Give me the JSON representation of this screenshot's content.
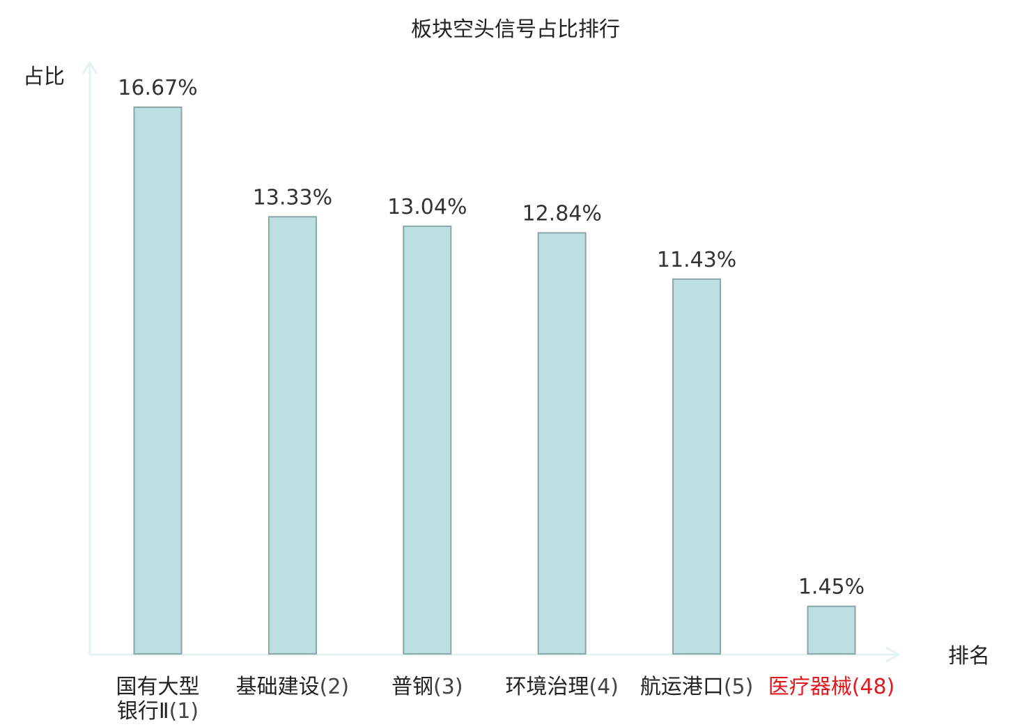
{
  "chart_data": {
    "type": "bar",
    "title": "板块空头信号占比排行",
    "ylabel": "占比",
    "xlabel": "排名",
    "categories": [
      {
        "name_lines": [
          "国有大型",
          "银行Ⅱ"
        ],
        "rank": "(1)",
        "highlight": false
      },
      {
        "name_lines": [
          "基础建设"
        ],
        "rank": "(2)",
        "highlight": false
      },
      {
        "name_lines": [
          "普钢"
        ],
        "rank": "(3)",
        "highlight": false
      },
      {
        "name_lines": [
          "环境治理"
        ],
        "rank": "(4)",
        "highlight": false
      },
      {
        "name_lines": [
          "航运港口"
        ],
        "rank": "(5)",
        "highlight": false
      },
      {
        "name_lines": [
          "医疗器械"
        ],
        "rank": "(48)",
        "highlight": true
      }
    ],
    "values": [
      16.67,
      13.33,
      13.04,
      12.84,
      11.43,
      1.45
    ],
    "value_labels": [
      "16.67%",
      "13.33%",
      "13.04%",
      "12.84%",
      "11.43%",
      "1.45%"
    ],
    "ylim": [
      0,
      18
    ],
    "grid": false,
    "colors": {
      "bar_fill": "#bce0e2",
      "bar_stroke": "#8aa6a8",
      "axis": "#e2f3f1",
      "text": "#222222",
      "value_label": "#333333",
      "rank_text": "#444444",
      "highlight": "#e0191e"
    }
  }
}
